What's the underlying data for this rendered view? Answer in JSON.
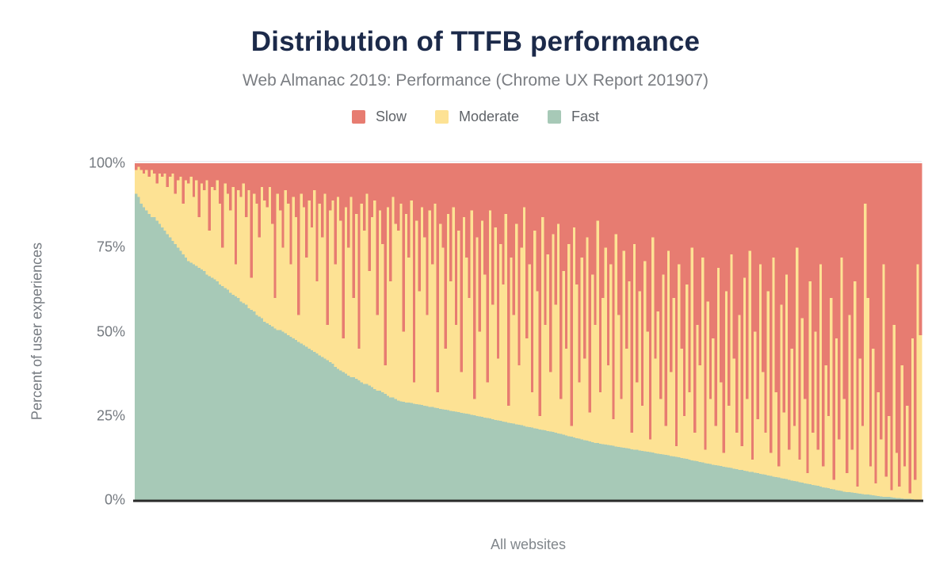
{
  "header": {
    "title": "Distribution of TTFB performance",
    "subtitle": "Web Almanac 2019: Performance (Chrome UX Report 201907)"
  },
  "chart_data": {
    "type": "bar",
    "stacked": true,
    "stack_total_percent": 100,
    "title": "Distribution of TTFB performance",
    "subtitle": "Web Almanac 2019: Performance (Chrome UX Report 201907)",
    "xlabel": "All websites",
    "ylabel": "Percent of user experiences",
    "x_description": "One thin bar per website, sorted by percent of fast TTFB experiences descending; x axis has no tick labels",
    "ylim": [
      0,
      100
    ],
    "grid": "off (single faint line at 100% only)",
    "legend_position": "top center",
    "legend": [
      {
        "name": "Slow",
        "color": "#e77c71"
      },
      {
        "name": "Moderate",
        "color": "#fde294"
      },
      {
        "name": "Fast",
        "color": "#a7c9b7"
      }
    ],
    "yticks": [
      {
        "value": 0,
        "label": "0%"
      },
      {
        "value": 25,
        "label": "25%"
      },
      {
        "value": 50,
        "label": "50%"
      },
      {
        "value": 75,
        "label": "75%"
      },
      {
        "value": 100,
        "label": "100%"
      }
    ],
    "axis_color": "#2a2a2a",
    "gridline_top_color": "#ececf2",
    "series": [
      {
        "name": "Fast",
        "color": "#a7c9b7",
        "values": [
          91,
          90,
          88,
          87,
          86,
          85,
          84,
          84,
          83,
          82,
          81,
          80,
          79,
          78,
          77,
          76,
          75,
          74,
          73,
          72,
          71,
          70.5,
          70,
          69.5,
          69,
          68.5,
          68,
          67,
          66.5,
          66,
          65.5,
          65,
          64,
          63.5,
          63,
          62.5,
          61.5,
          61,
          60.5,
          60,
          59,
          58.5,
          58,
          57,
          56.5,
          56,
          55,
          54.5,
          54,
          53,
          52.5,
          52,
          51.5,
          51,
          50.5,
          50.5,
          50,
          49.5,
          49,
          48.5,
          48,
          47.5,
          47,
          46.5,
          46,
          45.5,
          45,
          44.5,
          44,
          43.5,
          43,
          42.5,
          42,
          41.5,
          41,
          40.5,
          39.5,
          39,
          38.5,
          38,
          37.5,
          37,
          36.5,
          36.5,
          36,
          35.5,
          35,
          34.5,
          34.5,
          34,
          33.5,
          33,
          32.5,
          32.5,
          32,
          31.5,
          31,
          30.5,
          30.5,
          30,
          29.5,
          29.3,
          29.2,
          29,
          28.9,
          28.8,
          28.6,
          28.5,
          28.3,
          28.2,
          28,
          27.9,
          27.7,
          27.6,
          27.4,
          27.3,
          27.1,
          27,
          26.8,
          26.7,
          26.5,
          26.4,
          26.2,
          26.1,
          25.9,
          25.8,
          25.6,
          25.5,
          25.3,
          25.2,
          25,
          24.8,
          24.7,
          24.5,
          24.3,
          24.2,
          24,
          23.8,
          23.7,
          23.5,
          23.3,
          23.2,
          23,
          22.8,
          22.7,
          22.5,
          22.3,
          22.2,
          22,
          21.8,
          21.7,
          21.5,
          21.3,
          21.2,
          21,
          20.8,
          20.7,
          20.5,
          20.3,
          20.2,
          20,
          19.8,
          19.6,
          19.4,
          19.2,
          19,
          18.8,
          18.6,
          18.4,
          18.2,
          18,
          17.8,
          17.6,
          17.4,
          17.2,
          17,
          16.9,
          16.7,
          16.6,
          16.5,
          16.3,
          16.2,
          16.1,
          15.9,
          15.8,
          15.7,
          15.5,
          15.4,
          15.3,
          15.1,
          15,
          14.9,
          14.7,
          14.6,
          14.5,
          14.3,
          14.2,
          14.1,
          13.9,
          13.8,
          13.7,
          13.5,
          13.4,
          13.3,
          13.1,
          13,
          12.8,
          12.7,
          12.5,
          12.3,
          12.2,
          12,
          11.8,
          11.7,
          11.5,
          11.3,
          11.2,
          11,
          10.8,
          10.7,
          10.5,
          10.4,
          10.2,
          10.1,
          9.9,
          9.8,
          9.6,
          9.5,
          9.3,
          9.2,
          9,
          8.9,
          8.7,
          8.6,
          8.4,
          8.3,
          8.1,
          8,
          7.8,
          7.7,
          7.5,
          7.3,
          7.2,
          7,
          6.8,
          6.7,
          6.5,
          6.3,
          6.2,
          6,
          5.8,
          5.7,
          5.5,
          5.3,
          5.2,
          5,
          4.8,
          4.7,
          4.5,
          4.3,
          4.2,
          4,
          3.8,
          3.7,
          3.5,
          3.3,
          3.2,
          3,
          2.8,
          2.7,
          2.5,
          2.4,
          2.3,
          2.2,
          2.1,
          2,
          1.9,
          1.8,
          1.7,
          1.6,
          1.5,
          1.4,
          1.3,
          1.2,
          1.1,
          1,
          0.9,
          0.9,
          0.8,
          0.7,
          0.6,
          0.6,
          0.5,
          0.4,
          0.4,
          0.3,
          0.2,
          0.1,
          0.1,
          0
        ]
      },
      {
        "name": "Slow",
        "color": "#e77c71",
        "values": [
          2,
          1,
          2,
          3,
          2,
          4,
          2,
          3,
          6,
          3,
          4,
          3,
          7,
          4,
          3,
          9,
          5,
          4,
          12,
          5,
          6,
          4,
          10,
          5,
          16,
          6,
          8,
          5,
          20,
          7,
          8,
          5,
          12,
          25,
          6,
          9,
          14,
          7,
          30,
          8,
          10,
          6,
          16,
          8,
          34,
          9,
          12,
          22,
          7,
          11,
          13,
          7,
          18,
          40,
          9,
          14,
          25,
          8,
          12,
          30,
          10,
          16,
          45,
          9,
          13,
          28,
          11,
          19,
          8,
          35,
          12,
          22,
          9,
          48,
          14,
          11,
          30,
          10,
          17,
          52,
          13,
          25,
          10,
          40,
          15,
          55,
          12,
          20,
          9,
          32,
          16,
          11,
          45,
          14,
          24,
          60,
          13,
          35,
          10,
          18,
          20,
          12,
          50,
          15,
          28,
          11,
          65,
          17,
          38,
          13,
          22,
          45,
          14,
          30,
          12,
          68,
          18,
          25,
          55,
          15,
          35,
          13,
          48,
          20,
          62,
          16,
          28,
          40,
          14,
          70,
          22,
          50,
          17,
          33,
          65,
          14,
          42,
          19,
          58,
          24,
          36,
          15,
          72,
          28,
          45,
          18,
          60,
          25,
          13,
          52,
          30,
          68,
          20,
          38,
          75,
          16,
          48,
          27,
          62,
          21,
          42,
          18,
          70,
          32,
          55,
          24,
          78,
          19,
          36,
          65,
          28,
          58,
          22,
          74,
          33,
          48,
          17,
          68,
          40,
          25,
          60,
          30,
          76,
          21,
          45,
          70,
          26,
          55,
          35,
          80,
          24,
          65,
          38,
          72,
          29,
          50,
          82,
          22,
          58,
          44,
          70,
          33,
          78,
          26,
          62,
          40,
          84,
          30,
          55,
          75,
          36,
          68,
          25,
          80,
          48,
          60,
          28,
          85,
          41,
          70,
          52,
          78,
          31,
          65,
          86,
          38,
          72,
          27,
          58,
          80,
          45,
          84,
          34,
          70,
          26,
          88,
          50,
          76,
          30,
          62,
          80,
          38,
          86,
          28,
          68,
          90,
          42,
          74,
          33,
          85,
          55,
          78,
          25,
          88,
          46,
          70,
          92,
          35,
          80,
          50,
          85,
          30,
          90,
          60,
          75,
          40,
          94,
          52,
          82,
          28,
          70,
          92,
          45,
          85,
          35,
          96,
          58,
          78,
          12,
          40,
          90,
          55,
          95,
          68,
          82,
          30,
          93,
          75,
          97,
          48,
          86,
          96,
          60,
          90,
          72,
          98,
          52,
          94,
          30,
          51
        ]
      },
      {
        "name": "Moderate",
        "color": "#fde294",
        "values": "derived: Moderate = 100 - Fast - Slow for each bar (stack sums to 100%)"
      }
    ]
  }
}
